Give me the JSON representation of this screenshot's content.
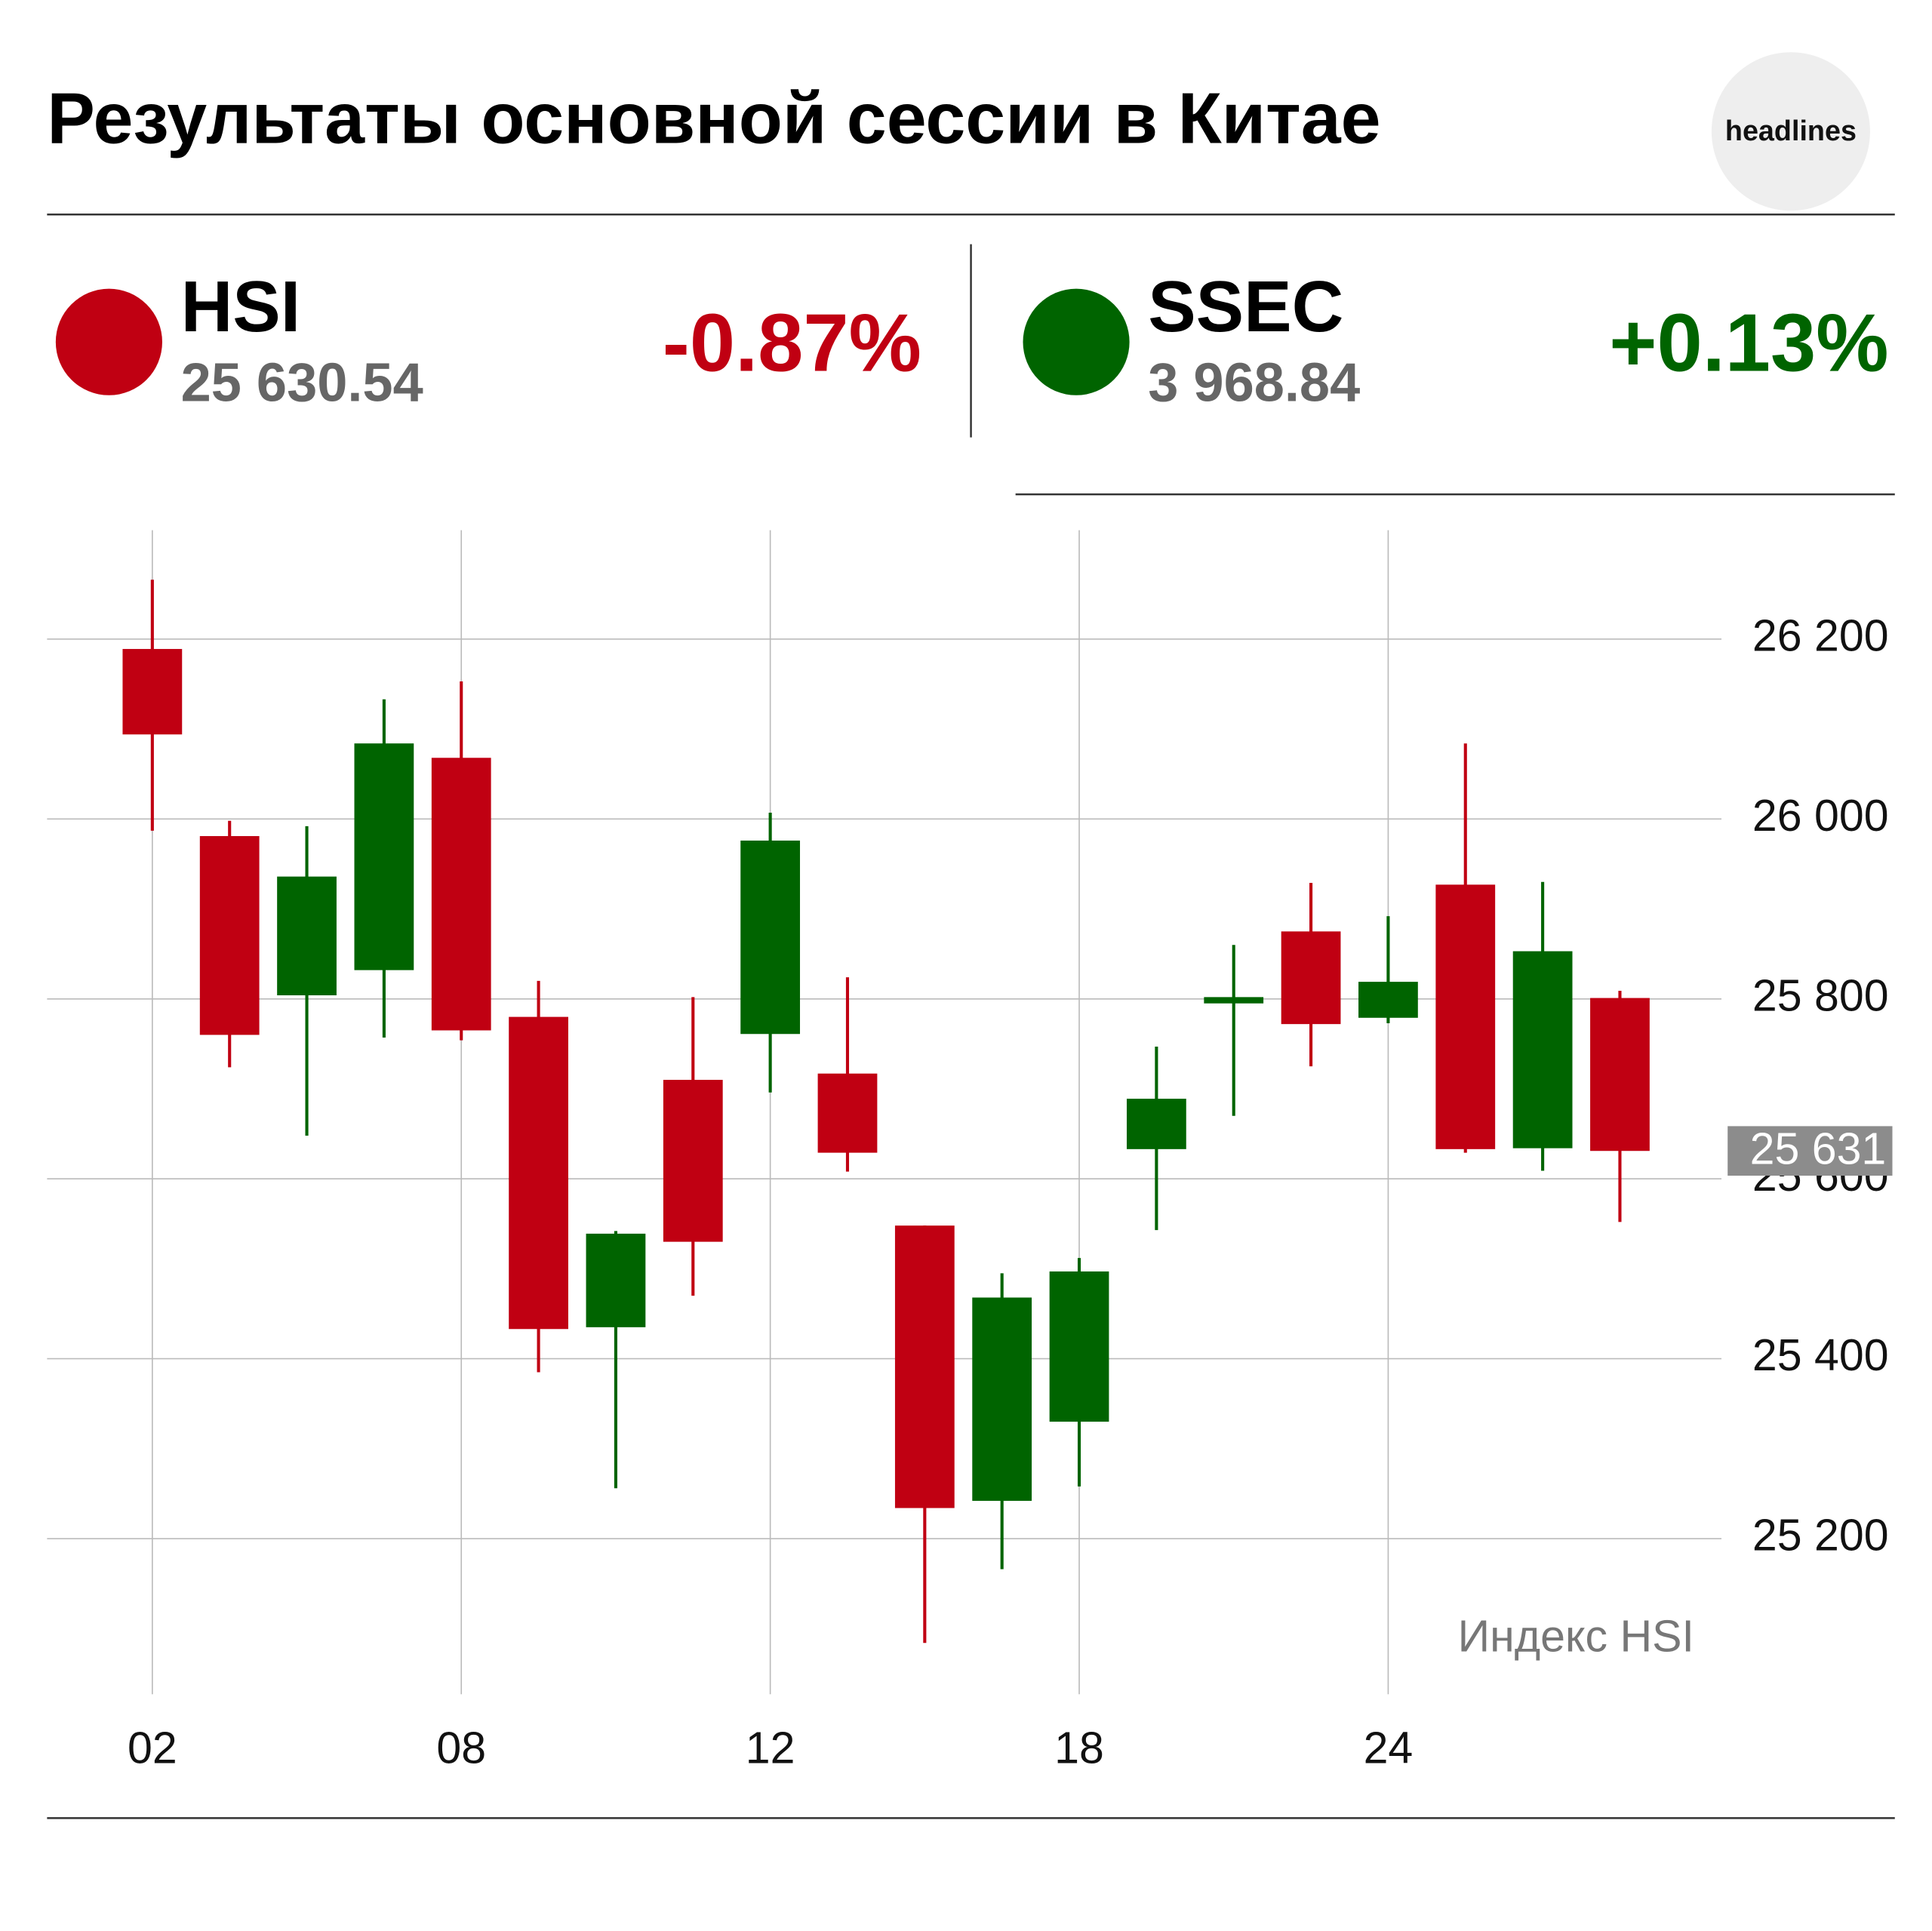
{
  "header": {
    "title": "Результаты основной сессии в Китае",
    "logo": "headlines",
    "indices": [
      {
        "name": "HSI",
        "value": "25 630.54",
        "change": "-0.87%",
        "color": "#c00012"
      },
      {
        "name": "SSEC",
        "value": "3 968.84",
        "change": "+0.13%",
        "color": "#006400"
      }
    ]
  },
  "chart_data": {
    "type": "candlestick",
    "annotation": "Индекс HSI",
    "up_color": "#006400",
    "down_color": "#c00012",
    "grid": true,
    "categories": [
      "02",
      null,
      null,
      null,
      "08",
      null,
      null,
      null,
      "12",
      null,
      null,
      null,
      "18",
      null,
      null,
      null,
      "24",
      null,
      null,
      null
    ],
    "open": [
      26189,
      25981,
      25804,
      25832,
      26068,
      25780,
      25435,
      25710,
      25761,
      25717,
      25548,
      25242,
      25330,
      25633,
      25795,
      25875,
      25779,
      25927,
      25634,
      25801
    ],
    "high": [
      26266,
      25998,
      25992,
      26133,
      26153,
      25820,
      25542,
      25802,
      26007,
      25824,
      25548,
      25495,
      25512,
      25747,
      25860,
      25929,
      25892,
      26084,
      25930,
      25809
    ],
    "low": [
      25987,
      25724,
      25648,
      25757,
      25754,
      25385,
      25256,
      25470,
      25696,
      25608,
      25084,
      25166,
      25258,
      25543,
      25670,
      25725,
      25773,
      25629,
      25609,
      25552
    ],
    "close": [
      26094,
      25760,
      25936,
      26084,
      25765,
      25433,
      25539,
      25530,
      25976,
      25629,
      25234,
      25468,
      25497,
      25689,
      25802,
      25772,
      25819,
      25633,
      25853,
      25631
    ],
    "ylim": [
      25027,
      26321
    ],
    "yticks": [
      {
        "value": 25200,
        "label": "25 200"
      },
      {
        "value": 25400,
        "label": "25 400"
      },
      {
        "value": 25600,
        "label": "25 600"
      },
      {
        "value": 25800,
        "label": "25 800"
      },
      {
        "value": 26000,
        "label": "26 000"
      },
      {
        "value": 26200,
        "label": "26 200"
      }
    ],
    "last_price": {
      "value": 25631,
      "label": "25 631"
    }
  }
}
